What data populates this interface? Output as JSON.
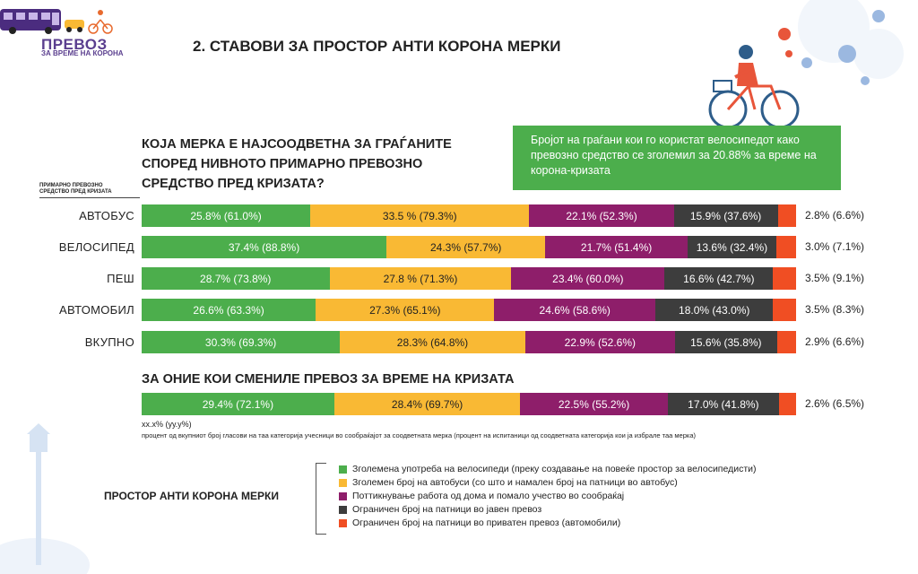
{
  "header": {
    "logo_title": "ПРЕВОЗ",
    "logo_subtitle": "ЗА ВРЕМЕ НА КОРОНА",
    "page_title": "2. СТАВОВИ ЗА ПРОСТОР АНТИ КОРОНА МЕРКИ"
  },
  "question": {
    "line1": "КОЈА МЕРКА Е НАЈСООДВЕТНА ЗА ГРАЃАНИТЕ",
    "line2": "СПОРЕД НИВНОТО ПРИМАРНО ПРЕВОЗНО",
    "line3": "СРЕДСТВО ПРЕД КРИЗАТА?"
  },
  "info_box": {
    "text": "Бројот на граѓани кои го користат велосипедот како превозно средство се зголемил за 20.88% за време на корона-кризата"
  },
  "primary_note": {
    "line1": "ПРИМАРНО ПРЕВОЗНО",
    "line2": "СРЕДСТВО ПРЕД КРИЗАТА"
  },
  "colors": {
    "green": "#4cae4c",
    "yellow": "#f9b934",
    "purple": "#8e1e6a",
    "dark": "#3d3d3d",
    "red": "#f04e23"
  },
  "chart_data": {
    "type": "bar",
    "orientation": "horizontal-stacked-100",
    "categories": [
      "АВТОБУС",
      "ВЕЛОСИПЕД",
      "ПЕШ",
      "АВТОМОБИЛ",
      "ВКУПНО"
    ],
    "series": [
      {
        "color": "#4cae4c",
        "values": [
          25.8,
          37.4,
          28.7,
          26.6,
          30.3
        ],
        "labels": [
          "25.8% (61.0%)",
          "37.4% (88.8%)",
          "28.7% (73.8%)",
          "26.6% (63.3%)",
          "30.3% (69.3%)"
        ]
      },
      {
        "color": "#f9b934",
        "values": [
          33.5,
          24.3,
          27.8,
          27.3,
          28.3
        ],
        "labels": [
          "33.5 % (79.3%)",
          "24.3% (57.7%)",
          "27.8 % (71.3%)",
          "27.3% (65.1%)",
          "28.3% (64.8%)"
        ]
      },
      {
        "color": "#8e1e6a",
        "values": [
          22.1,
          21.7,
          23.4,
          24.6,
          22.9
        ],
        "labels": [
          "22.1% (52.3%)",
          "21.7% (51.4%)",
          "23.4% (60.0%)",
          "24.6% (58.6%)",
          "22.9% (52.6%)"
        ]
      },
      {
        "color": "#3d3d3d",
        "values": [
          15.9,
          13.6,
          16.6,
          18.0,
          15.6
        ],
        "labels": [
          "15.9% (37.6%)",
          "13.6% (32.4%)",
          "16.6% (42.7%)",
          "18.0% (43.0%)",
          "15.6% (35.8%)"
        ]
      },
      {
        "color": "#f04e23",
        "values": [
          2.8,
          3.0,
          3.5,
          3.5,
          2.9
        ],
        "labels": [
          "2.8% (6.6%)",
          "3.0% (7.1%)",
          "3.5% (9.1%)",
          "3.5% (8.3%)",
          "2.9% (6.6%)"
        ]
      }
    ],
    "changed_transport": {
      "title": "ЗА ОНИЕ КОИ СМЕНИЛЕ ПРЕВОЗ ЗА ВРЕМЕ НА КРИЗАТА",
      "values": [
        29.4,
        28.4,
        22.5,
        17.0,
        2.6
      ],
      "labels": [
        "29.4% (72.1%)",
        "28.4% (69.7%)",
        "22.5% (55.2%)",
        "17.0% (41.8%)",
        "2.6% (6.5%)"
      ]
    },
    "format_note": {
      "line1": "хх.х% (уу.у%)",
      "line2": "процент од вкупниот број гласови на таа категорија учесници во сообраќајот за соодветната мерка  (процент на испитаници од соодветната категорија кои ја избрале таа мерка)"
    },
    "legend": {
      "title": "ПРОСТОР АНТИ КОРОНА МЕРКИ",
      "items": [
        {
          "label": "Зголемена употреба на велосипеди (преку создавање на повеќе простор за велосипедисти)",
          "color": "#4cae4c"
        },
        {
          "label": "Зголемен број на автобуси (со што и намален број на патници во автобус)",
          "color": "#f9b934"
        },
        {
          "label": "Поттикнување работа од дома и помало учество во сообраќај",
          "color": "#8e1e6a"
        },
        {
          "label": "Ограничен број на патници во јавен превоз",
          "color": "#3d3d3d"
        },
        {
          "label": "Ограничен број на патници во приватен превоз (автомобили)",
          "color": "#f04e23"
        }
      ]
    }
  }
}
